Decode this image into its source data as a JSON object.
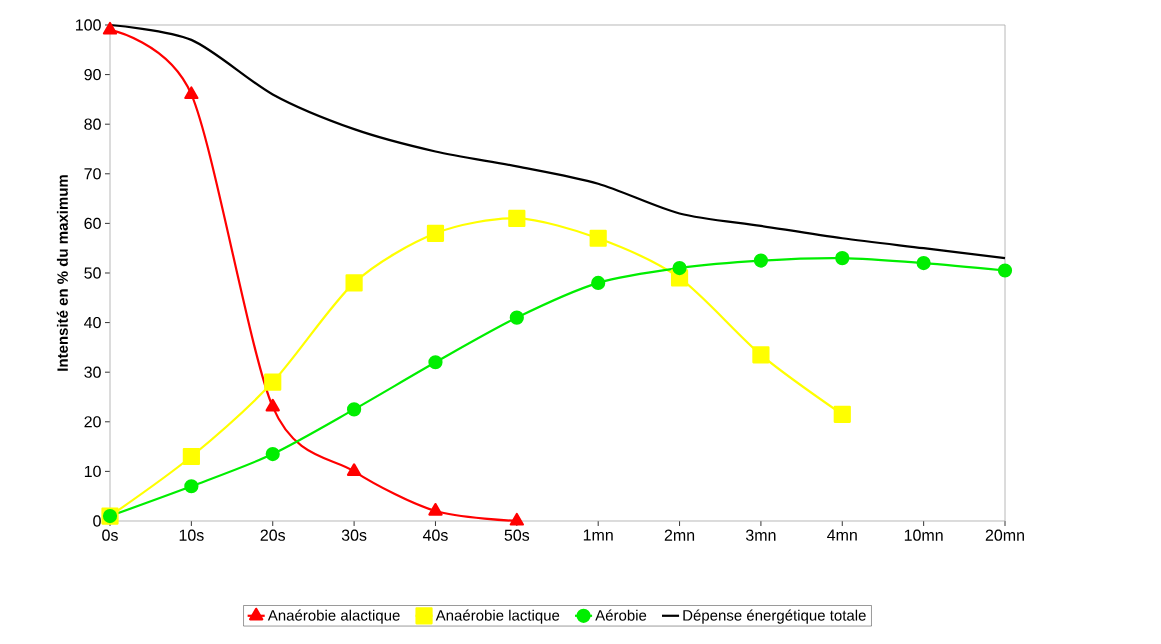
{
  "chart_data": {
    "type": "line",
    "ylabel": "Intensité en % du maximum",
    "categories": [
      "0s",
      "10s",
      "20s",
      "30s",
      "40s",
      "50s",
      "1mn",
      "2mn",
      "3mn",
      "4mn",
      "10mn",
      "20mn"
    ],
    "ylim": [
      0,
      100
    ],
    "yticks": [
      0,
      10,
      20,
      30,
      40,
      50,
      60,
      70,
      80,
      90,
      100
    ],
    "grid": false,
    "legend": "bottom",
    "line_style": "solid",
    "series": [
      {
        "name": "Anaérobie alactique",
        "color": "#ff0000",
        "marker": "triangle",
        "values": [
          99,
          86,
          23,
          10,
          2,
          0,
          null,
          null,
          null,
          null,
          null,
          null
        ]
      },
      {
        "name": "Anaérobie lactique",
        "color": "#ffff00",
        "marker": "square",
        "values": [
          1,
          13,
          28,
          48,
          58,
          61,
          57,
          49,
          33.5,
          21.5,
          null,
          null
        ]
      },
      {
        "name": "Aérobie",
        "color": "#00ee00",
        "marker": "circle",
        "values": [
          1,
          7,
          13.5,
          22.5,
          32,
          41,
          48,
          51,
          52.5,
          53,
          52,
          50.5
        ]
      },
      {
        "name": "Dépense énergétique totale",
        "color": "#000000",
        "marker": "none",
        "values": [
          100,
          97,
          86,
          79,
          74.5,
          71.5,
          68,
          62,
          59.5,
          57,
          55,
          53
        ]
      }
    ]
  }
}
